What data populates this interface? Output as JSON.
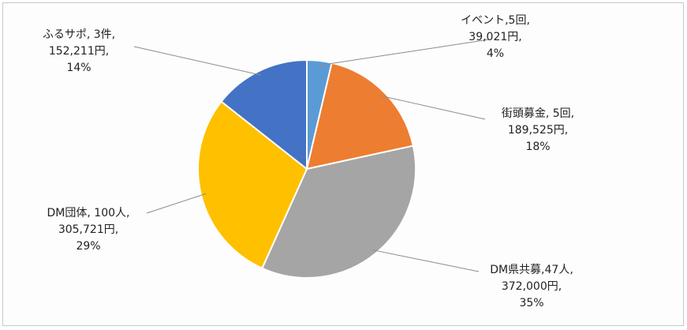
{
  "chart_data": {
    "type": "pie",
    "slices": [
      {
        "name": "イベント",
        "count": "5回",
        "amount": "39,021円",
        "percent": "4%",
        "value": 39021,
        "color": "#5b9bd5",
        "lines": [
          "イベント,5回,",
          "39,021円,",
          "4%"
        ]
      },
      {
        "name": "街頭募金",
        "count": "5回",
        "amount": "189,525円",
        "percent": "18%",
        "value": 189525,
        "color": "#ed7d31",
        "lines": [
          "街頭募金, 5回,",
          "189,525円,",
          "18%"
        ]
      },
      {
        "name": "DM県共募",
        "count": "47人",
        "amount": "372,000円",
        "percent": "35%",
        "value": 372000,
        "color": "#a5a5a5",
        "lines": [
          "DM県共募,47人,",
          "372,000円,",
          "35%"
        ]
      },
      {
        "name": "DM団体",
        "count": "100人",
        "amount": "305,721円",
        "percent": "29%",
        "value": 305721,
        "color": "#ffc000",
        "lines": [
          "DM団体, 100人,",
          "305,721円,",
          "29%"
        ]
      },
      {
        "name": "ふるサポ",
        "count": "3件",
        "amount": "152,211円",
        "percent": "14%",
        "value": 152211,
        "color": "#4472c4",
        "lines": [
          "ふるサポ, 3件,",
          "152,211円,",
          "14%"
        ]
      }
    ]
  }
}
